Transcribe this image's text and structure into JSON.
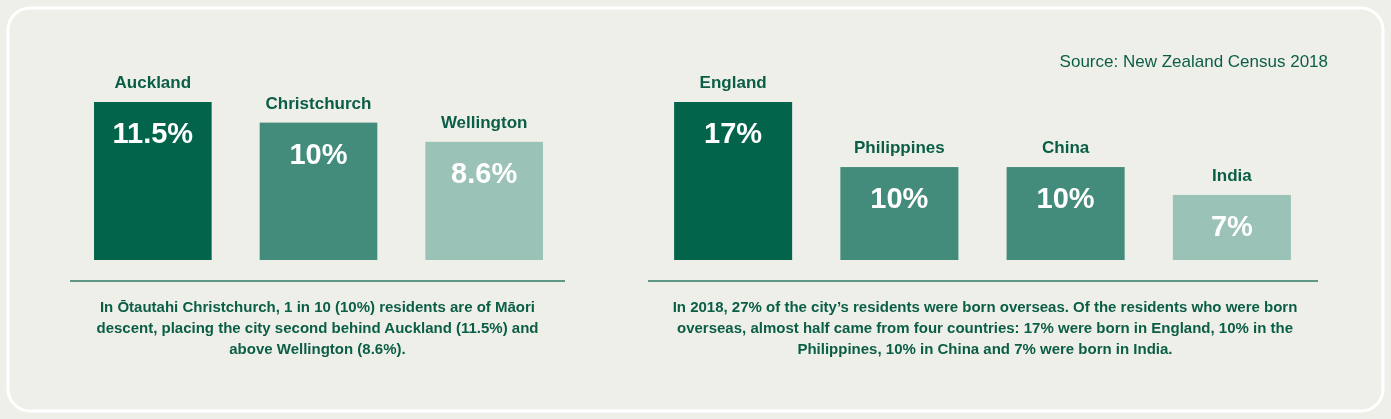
{
  "chart_data": [
    {
      "type": "bar",
      "categories": [
        "Auckland",
        "Christchurch",
        "Wellington"
      ],
      "values": [
        11.5,
        10,
        8.6
      ],
      "colors": [
        "#02644b",
        "#438b7a",
        "#9ac2b7"
      ],
      "relative": false,
      "value_labels": [
        "11.5%",
        "10%",
        "8.6%"
      ],
      "annotations": [
        "In Ōtautahi Christchurch, 1 in 10 (10%) residents are of Māori descent, placing the city second behind Auckland (11.5%) and above Wellington (8.6%)."
      ]
    },
    {
      "type": "bar",
      "categories": [
        "England",
        "Philippines",
        "China",
        "India"
      ],
      "values": [
        17,
        10,
        10,
        7
      ],
      "colors": [
        "#02644b",
        "#438b7a",
        "#438b7a",
        "#9ac2b7"
      ],
      "value_labels": [
        "17%",
        "10%",
        "10%",
        "7%"
      ],
      "annotations": [
        "Source: New Zealand Census 2018",
        "In 2018, 27% of the city’s residents were born overseas. Of the residents who were born overseas, almost half came from four countries: 17% were born in England, 10% in the Philippines, 10% in China and 7% were born in India."
      ]
    }
  ]
}
